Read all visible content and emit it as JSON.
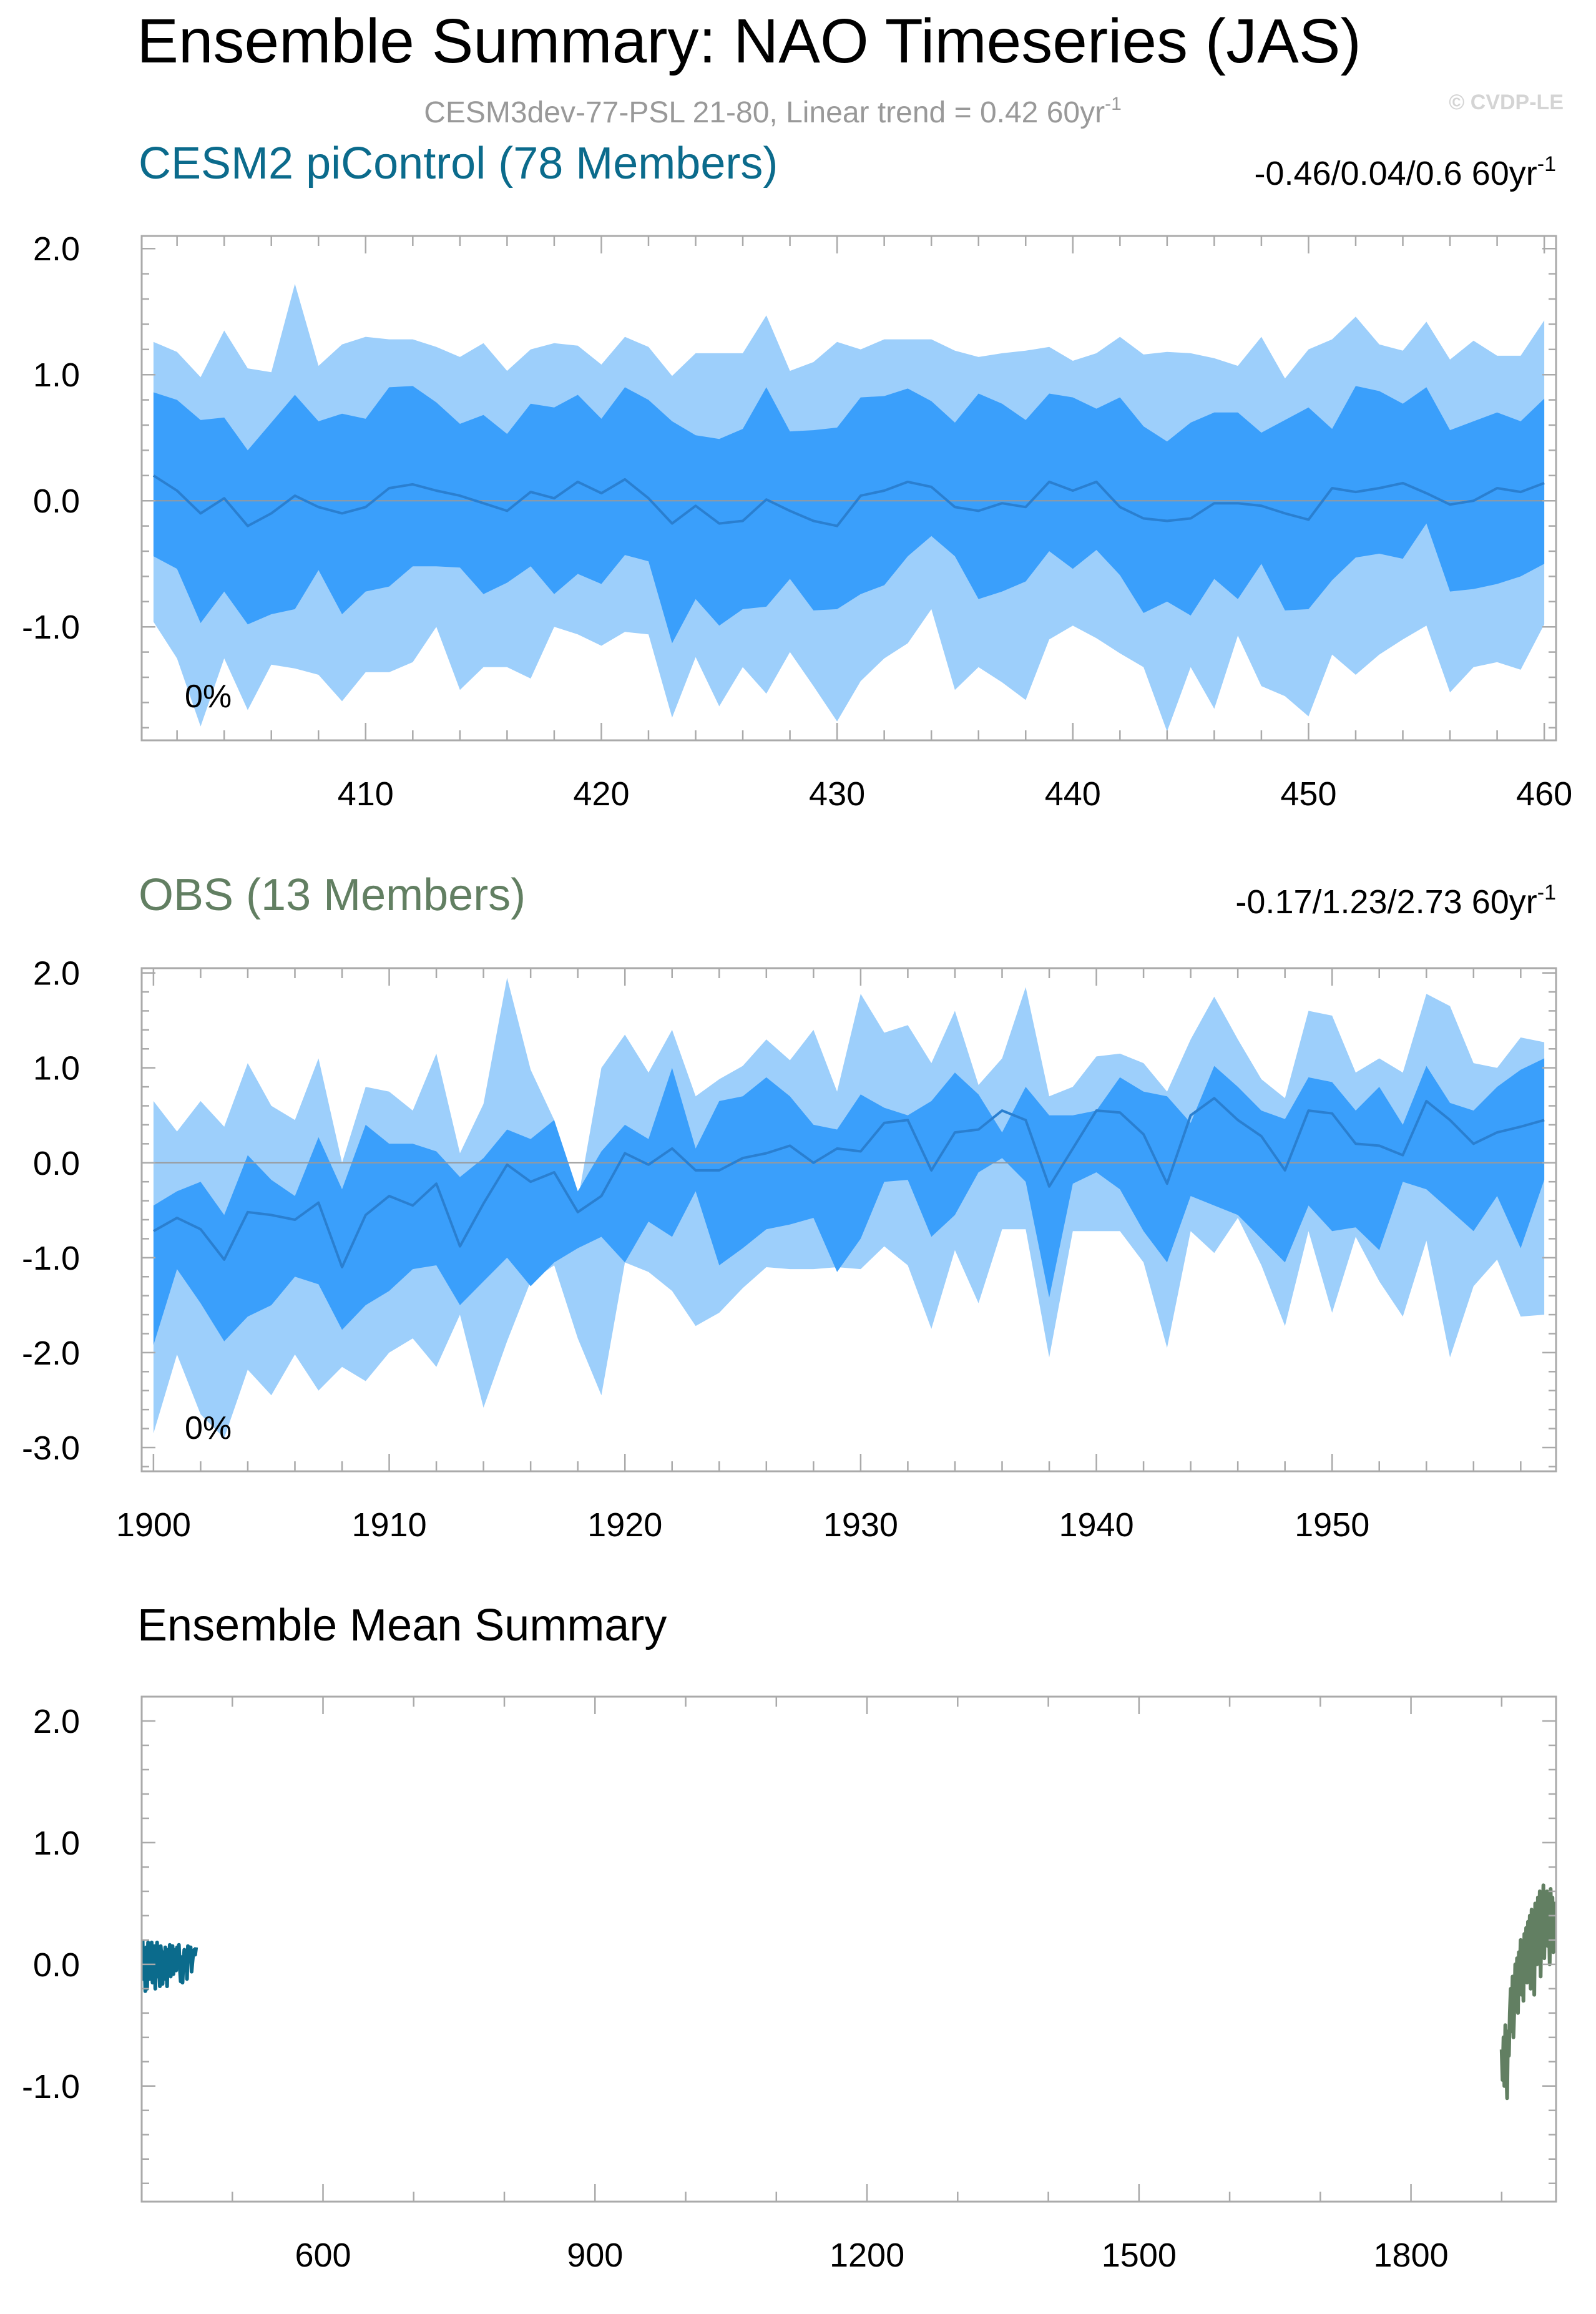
{
  "title": "Ensemble Summary: NAO Timeseries (JAS)",
  "subtitle_base": "CESM3dev-77-PSL 21-80, Linear trend = 0.42 60yr",
  "subtitle_sup": "-1",
  "watermark": "© CVDP-LE",
  "colors": {
    "outer_band": "#9dcffb",
    "inner_band": "#3a9ffb",
    "mean_line": "#2a7fd0",
    "cesm2": "#0b6b8c",
    "obs": "#627f62",
    "frame": "#aaaaaa",
    "zero_line": "#999999"
  },
  "chart_data": [
    {
      "type": "area",
      "panel_title": "CESM2 piControl (78 Members)",
      "trend_base": "-0.46/0.04/0.6 60yr",
      "trend_sup": "-1",
      "percent_label": "0%",
      "xlim": [
        400.5,
        460.5
      ],
      "ylim": [
        -1.9,
        2.1
      ],
      "x_ticks": [
        410,
        420,
        430,
        440,
        450,
        460
      ],
      "y_ticks": [
        2.0,
        1.0,
        0.0,
        -1.0
      ],
      "y_tick_labels": [
        "2.0",
        "1.0",
        "0.0",
        "-1.0"
      ],
      "x": [
        401,
        402,
        403,
        404,
        405,
        406,
        407,
        408,
        409,
        410,
        411,
        412,
        413,
        414,
        415,
        416,
        417,
        418,
        419,
        420,
        421,
        422,
        423,
        424,
        425,
        426,
        427,
        428,
        429,
        430,
        431,
        432,
        433,
        434,
        435,
        436,
        437,
        438,
        439,
        440,
        441,
        442,
        443,
        444,
        445,
        446,
        447,
        448,
        449,
        450,
        451,
        452,
        453,
        454,
        455,
        456,
        457,
        458,
        459,
        460
      ],
      "series": [
        {
          "name": "max",
          "values": [
            1.26,
            1.18,
            0.98,
            1.35,
            1.05,
            1.02,
            1.72,
            1.07,
            1.24,
            1.3,
            1.28,
            1.28,
            1.22,
            1.14,
            1.25,
            1.03,
            1.2,
            1.25,
            1.23,
            1.08,
            1.3,
            1.22,
            0.99,
            1.17,
            1.17,
            1.17,
            1.47,
            1.03,
            1.1,
            1.26,
            1.2,
            1.28,
            1.28,
            1.28,
            1.19,
            1.14,
            1.17,
            1.19,
            1.22,
            1.11,
            1.17,
            1.3,
            1.16,
            1.18,
            1.17,
            1.13,
            1.07,
            1.3,
            0.97,
            1.2,
            1.28,
            1.46,
            1.24,
            1.19,
            1.42,
            1.12,
            1.27,
            1.15,
            1.15,
            1.43
          ]
        },
        {
          "name": "p84",
          "values": [
            0.86,
            0.8,
            0.64,
            0.66,
            0.4,
            0.62,
            0.84,
            0.63,
            0.69,
            0.65,
            0.9,
            0.91,
            0.78,
            0.61,
            0.68,
            0.53,
            0.77,
            0.74,
            0.84,
            0.65,
            0.9,
            0.8,
            0.63,
            0.52,
            0.49,
            0.57,
            0.9,
            0.55,
            0.56,
            0.58,
            0.82,
            0.83,
            0.89,
            0.79,
            0.62,
            0.85,
            0.77,
            0.64,
            0.85,
            0.82,
            0.73,
            0.82,
            0.59,
            0.47,
            0.62,
            0.7,
            0.7,
            0.54,
            0.64,
            0.74,
            0.57,
            0.91,
            0.87,
            0.77,
            0.9,
            0.56,
            0.63,
            0.7,
            0.63,
            0.81
          ]
        },
        {
          "name": "mean",
          "values": [
            0.2,
            0.08,
            -0.1,
            0.02,
            -0.2,
            -0.1,
            0.04,
            -0.05,
            -0.1,
            -0.05,
            0.1,
            0.13,
            0.08,
            0.04,
            -0.02,
            -0.08,
            0.07,
            0.02,
            0.15,
            0.06,
            0.17,
            0.02,
            -0.18,
            -0.04,
            -0.18,
            -0.16,
            0.01,
            -0.08,
            -0.16,
            -0.2,
            0.04,
            0.08,
            0.15,
            0.11,
            -0.05,
            -0.08,
            -0.02,
            -0.05,
            0.15,
            0.08,
            0.15,
            -0.05,
            -0.14,
            -0.16,
            -0.14,
            -0.02,
            -0.02,
            -0.04,
            -0.1,
            -0.15,
            0.1,
            0.07,
            0.1,
            0.14,
            0.06,
            -0.03,
            0.0,
            0.1,
            0.07,
            0.14
          ]
        },
        {
          "name": "p16",
          "values": [
            -0.44,
            -0.54,
            -0.97,
            -0.72,
            -0.98,
            -0.9,
            -0.86,
            -0.55,
            -0.9,
            -0.72,
            -0.68,
            -0.52,
            -0.52,
            -0.53,
            -0.74,
            -0.65,
            -0.52,
            -0.74,
            -0.58,
            -0.66,
            -0.43,
            -0.48,
            -1.13,
            -0.78,
            -0.99,
            -0.86,
            -0.84,
            -0.62,
            -0.87,
            -0.86,
            -0.74,
            -0.67,
            -0.44,
            -0.28,
            -0.44,
            -0.78,
            -0.72,
            -0.64,
            -0.4,
            -0.54,
            -0.39,
            -0.59,
            -0.89,
            -0.8,
            -0.91,
            -0.62,
            -0.78,
            -0.5,
            -0.87,
            -0.86,
            -0.63,
            -0.45,
            -0.42,
            -0.46,
            -0.18,
            -0.72,
            -0.7,
            -0.66,
            -0.6,
            -0.5
          ]
        },
        {
          "name": "min",
          "values": [
            -0.96,
            -1.25,
            -1.79,
            -1.25,
            -1.66,
            -1.3,
            -1.33,
            -1.38,
            -1.59,
            -1.36,
            -1.36,
            -1.28,
            -1.0,
            -1.5,
            -1.32,
            -1.32,
            -1.41,
            -1.0,
            -1.06,
            -1.15,
            -1.04,
            -1.06,
            -1.72,
            -1.24,
            -1.63,
            -1.32,
            -1.53,
            -1.2,
            -1.47,
            -1.75,
            -1.43,
            -1.25,
            -1.13,
            -0.86,
            -1.5,
            -1.32,
            -1.44,
            -1.58,
            -1.1,
            -0.99,
            -1.09,
            -1.21,
            -1.32,
            -1.83,
            -1.32,
            -1.65,
            -1.07,
            -1.47,
            -1.55,
            -1.71,
            -1.22,
            -1.38,
            -1.22,
            -1.1,
            -0.99,
            -1.52,
            -1.32,
            -1.28,
            -1.34,
            -0.98
          ]
        }
      ]
    },
    {
      "type": "area",
      "panel_title": "OBS (13 Members)",
      "trend_base": "-0.17/1.23/2.73 60yr",
      "trend_sup": "-1",
      "percent_label": "0%",
      "xlim": [
        1899.5,
        1959.5
      ],
      "ylim": [
        -3.25,
        2.05
      ],
      "x_ticks": [
        1900,
        1910,
        1920,
        1930,
        1940,
        1950
      ],
      "y_ticks": [
        2.0,
        1.0,
        0.0,
        -1.0,
        -2.0,
        -3.0
      ],
      "y_tick_labels": [
        "2.0",
        "1.0",
        "0.0",
        "-1.0",
        "-2.0",
        "-3.0"
      ],
      "x": [
        1900,
        1901,
        1902,
        1903,
        1904,
        1905,
        1906,
        1907,
        1908,
        1909,
        1910,
        1911,
        1912,
        1913,
        1914,
        1915,
        1916,
        1917,
        1918,
        1919,
        1920,
        1921,
        1922,
        1923,
        1924,
        1925,
        1926,
        1927,
        1928,
        1929,
        1930,
        1931,
        1932,
        1933,
        1934,
        1935,
        1936,
        1937,
        1938,
        1939,
        1940,
        1941,
        1942,
        1943,
        1944,
        1945,
        1946,
        1947,
        1948,
        1949,
        1950,
        1951,
        1952,
        1953,
        1954,
        1955,
        1956,
        1957,
        1958,
        1959
      ],
      "series": [
        {
          "name": "max",
          "values": [
            0.65,
            0.33,
            0.65,
            0.38,
            1.05,
            0.6,
            0.45,
            1.1,
            0.0,
            0.8,
            0.75,
            0.55,
            1.15,
            0.1,
            0.62,
            1.95,
            0.98,
            0.45,
            -0.4,
            1.0,
            1.35,
            0.95,
            1.4,
            0.7,
            0.88,
            1.02,
            1.3,
            1.08,
            1.4,
            0.75,
            1.78,
            1.37,
            1.45,
            1.05,
            1.6,
            0.82,
            1.1,
            1.85,
            0.7,
            0.8,
            1.12,
            1.15,
            1.05,
            0.75,
            1.3,
            1.75,
            1.3,
            0.88,
            0.68,
            1.6,
            1.55,
            0.95,
            1.1,
            0.95,
            1.78,
            1.65,
            1.05,
            1.0,
            1.32,
            1.27
          ]
        },
        {
          "name": "p84",
          "values": [
            -0.45,
            -0.3,
            -0.2,
            -0.55,
            0.08,
            -0.18,
            -0.35,
            0.27,
            -0.28,
            0.4,
            0.2,
            0.2,
            0.12,
            -0.15,
            0.05,
            0.35,
            0.25,
            0.45,
            -0.3,
            0.12,
            0.4,
            0.25,
            1.0,
            0.15,
            0.65,
            0.7,
            0.9,
            0.7,
            0.4,
            0.35,
            0.72,
            0.58,
            0.5,
            0.65,
            0.95,
            0.72,
            0.32,
            0.8,
            0.5,
            0.5,
            0.55,
            0.9,
            0.75,
            0.7,
            0.42,
            1.02,
            0.8,
            0.55,
            0.46,
            0.9,
            0.85,
            0.55,
            0.8,
            0.4,
            1.02,
            0.63,
            0.55,
            0.8,
            0.98,
            1.1
          ]
        },
        {
          "name": "mean",
          "values": [
            -0.72,
            -0.58,
            -0.7,
            -1.02,
            -0.52,
            -0.55,
            -0.6,
            -0.42,
            -1.1,
            -0.55,
            -0.35,
            -0.45,
            -0.22,
            -0.88,
            -0.43,
            -0.02,
            -0.2,
            -0.1,
            -0.52,
            -0.35,
            0.1,
            -0.02,
            0.15,
            -0.08,
            -0.08,
            0.05,
            0.1,
            0.18,
            0.0,
            0.15,
            0.12,
            0.42,
            0.45,
            -0.08,
            0.32,
            0.35,
            0.55,
            0.45,
            -0.25,
            0.15,
            0.55,
            0.53,
            0.3,
            -0.22,
            0.5,
            0.68,
            0.45,
            0.28,
            -0.08,
            0.55,
            0.52,
            0.2,
            0.18,
            0.08,
            0.65,
            0.45,
            0.2,
            0.32,
            0.38,
            0.45
          ]
        },
        {
          "name": "p16",
          "values": [
            -1.92,
            -1.12,
            -1.48,
            -1.88,
            -1.62,
            -1.5,
            -1.2,
            -1.28,
            -1.76,
            -1.5,
            -1.35,
            -1.12,
            -1.08,
            -1.5,
            -1.25,
            -1.0,
            -1.3,
            -1.05,
            -0.9,
            -0.78,
            -1.05,
            -0.62,
            -0.78,
            -0.3,
            -1.08,
            -0.9,
            -0.7,
            -0.65,
            -0.58,
            -1.15,
            -0.8,
            -0.2,
            -0.18,
            -0.78,
            -0.55,
            -0.1,
            0.05,
            -0.2,
            -1.42,
            -0.22,
            -0.1,
            -0.28,
            -0.72,
            -1.05,
            -0.35,
            -0.45,
            -0.55,
            -0.8,
            -1.05,
            -0.45,
            -0.72,
            -0.68,
            -0.92,
            -0.2,
            -0.28,
            -0.5,
            -0.72,
            -0.35,
            -0.9,
            -0.18
          ]
        },
        {
          "name": "min",
          "values": [
            -2.85,
            -2.02,
            -2.65,
            -2.9,
            -2.18,
            -2.45,
            -2.02,
            -2.4,
            -2.15,
            -2.3,
            -2.0,
            -1.85,
            -2.15,
            -1.6,
            -2.58,
            -1.88,
            -1.25,
            -1.08,
            -1.85,
            -2.45,
            -1.05,
            -1.15,
            -1.35,
            -1.72,
            -1.58,
            -1.32,
            -1.1,
            -1.12,
            -1.12,
            -1.1,
            -1.12,
            -0.88,
            -1.08,
            -1.75,
            -0.92,
            -1.48,
            -0.7,
            -0.7,
            -2.05,
            -0.72,
            -0.72,
            -0.72,
            -1.05,
            -1.95,
            -0.72,
            -0.95,
            -0.58,
            -1.08,
            -1.72,
            -0.72,
            -1.58,
            -0.78,
            -1.25,
            -1.62,
            -0.82,
            -2.05,
            -1.3,
            -1.02,
            -1.62,
            -1.6
          ]
        }
      ]
    },
    {
      "type": "line",
      "panel_title": "Ensemble Mean Summary",
      "xlim": [
        400,
        1960
      ],
      "ylim": [
        -1.95,
        2.2
      ],
      "x_ticks": [
        600,
        900,
        1200,
        1500,
        1800
      ],
      "y_ticks": [
        2.0,
        1.0,
        0.0,
        -1.0
      ],
      "y_tick_labels": [
        "2.0",
        "1.0",
        "0.0",
        "-1.0"
      ],
      "series": [
        {
          "name": "CESM2 piControl",
          "color_key": "cesm2",
          "x_from": 401,
          "x_to": 460,
          "values": [
            0.2,
            -0.12,
            0.1,
            -0.22,
            0.14,
            -0.2,
            0.18,
            -0.05,
            -0.12,
            0.12,
            0.18,
            -0.15,
            0.08,
            0.15,
            -0.2,
            0.02,
            0.18,
            -0.1,
            0.12,
            -0.18,
            0.15,
            0.05,
            -0.16,
            0.1,
            -0.12,
            0.14,
            0.02,
            -0.18,
            0.12,
            -0.06,
            0.16,
            -0.1,
            0.08,
            0.15,
            -0.08,
            0.05,
            0.12,
            -0.05,
            0.14,
            0.08,
            0.16,
            -0.02,
            -0.14,
            0.06,
            -0.15,
            0.02,
            0.12,
            -0.05,
            0.1,
            -0.12,
            0.15,
            0.04,
            0.1,
            0.14,
            -0.06,
            0.02,
            0.1,
            0.12,
            0.08,
            0.14
          ]
        },
        {
          "name": "OBS",
          "color_key": "obs",
          "x_from": 1900,
          "x_to": 1959,
          "values": [
            -0.7,
            -0.95,
            -0.6,
            -1.0,
            -0.5,
            -0.85,
            -1.1,
            -0.55,
            -0.75,
            -0.4,
            -0.2,
            -0.55,
            -0.1,
            -0.6,
            -0.35,
            0.0,
            -0.25,
            0.05,
            -0.4,
            0.1,
            -0.05,
            0.2,
            -0.25,
            0.15,
            -0.3,
            0.25,
            0.0,
            0.3,
            -0.15,
            0.35,
            0.05,
            0.4,
            -0.2,
            0.45,
            0.1,
            0.3,
            -0.25,
            0.5,
            0.2,
            0.0,
            0.55,
            0.1,
            0.6,
            -0.1,
            0.45,
            0.3,
            0.65,
            0.05,
            0.5,
            0.2,
            0.6,
            0.15,
            0.45,
            0.0,
            0.62,
            0.3,
            0.55,
            0.1,
            0.5,
            0.45
          ]
        }
      ]
    }
  ]
}
